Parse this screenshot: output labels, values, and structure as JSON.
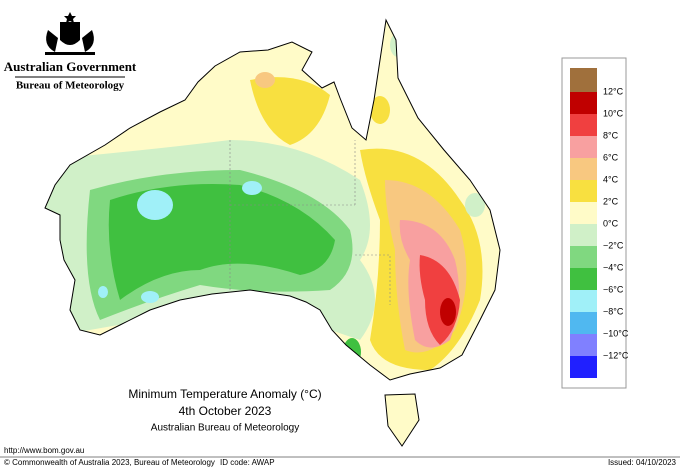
{
  "header": {
    "government": "Australian Government",
    "agency": "Bureau of Meteorology"
  },
  "legend": {
    "labels": [
      "12°C",
      "10°C",
      "8°C",
      "6°C",
      "4°C",
      "2°C",
      "0°C",
      "−2°C",
      "−4°C",
      "−6°C",
      "−8°C",
      "−10°C",
      "−12°C"
    ]
  },
  "title": {
    "line1": "Minimum Temperature Anomaly (°C)",
    "line2": "4th October 2023",
    "line3": "Australian Bureau of Meteorology"
  },
  "footer": {
    "url": "http://www.bom.gov.au",
    "copyright": "© Commonwealth of Australia 2023, Bureau of Meteorology",
    "id_code": "ID code: AWAP",
    "issued": "Issued: 04/10/2023"
  }
}
